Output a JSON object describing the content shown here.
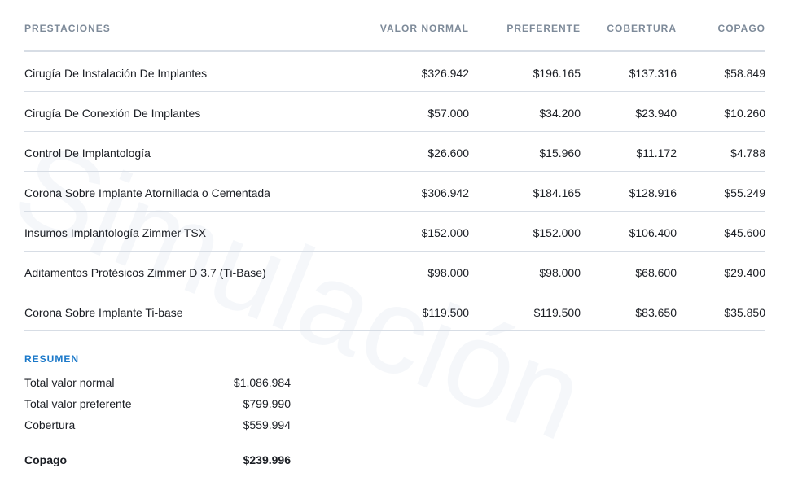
{
  "watermark": "Simulación",
  "table": {
    "headers": {
      "name": "PRESTACIONES",
      "normal": "VALOR NORMAL",
      "preferente": "PREFERENTE",
      "cobertura": "COBERTURA",
      "copago": "COPAGO"
    },
    "rows": [
      {
        "name": "Cirugía De Instalación De Implantes",
        "normal": "$326.942",
        "preferente": "$196.165",
        "cobertura": "$137.316",
        "copago": "$58.849"
      },
      {
        "name": "Cirugía De Conexión De Implantes",
        "normal": "$57.000",
        "preferente": "$34.200",
        "cobertura": "$23.940",
        "copago": "$10.260"
      },
      {
        "name": "Control De Implantología",
        "normal": "$26.600",
        "preferente": "$15.960",
        "cobertura": "$11.172",
        "copago": "$4.788"
      },
      {
        "name": "Corona Sobre Implante Atornillada o Cementada",
        "normal": "$306.942",
        "preferente": "$184.165",
        "cobertura": "$128.916",
        "copago": "$55.249"
      },
      {
        "name": "Insumos Implantología Zimmer TSX",
        "normal": "$152.000",
        "preferente": "$152.000",
        "cobertura": "$106.400",
        "copago": "$45.600"
      },
      {
        "name": "Aditamentos Protésicos Zimmer D 3.7 (Ti-Base)",
        "normal": "$98.000",
        "preferente": "$98.000",
        "cobertura": "$68.600",
        "copago": "$29.400"
      },
      {
        "name": "Corona Sobre Implante Ti-base",
        "normal": "$119.500",
        "preferente": "$119.500",
        "cobertura": "$83.650",
        "copago": "$35.850"
      }
    ]
  },
  "summary": {
    "title": "RESUMEN",
    "total_normal_label": "Total valor normal",
    "total_normal_value": "$1.086.984",
    "total_pref_label": "Total valor preferente",
    "total_pref_value": "$799.990",
    "cobertura_label": "Cobertura",
    "cobertura_value": "$559.994",
    "copago_label": "Copago",
    "copago_value": "$239.996"
  },
  "colors": {
    "accent": "#1a78c9",
    "header_text": "#7d8a99",
    "divider": "#d7dde5"
  }
}
